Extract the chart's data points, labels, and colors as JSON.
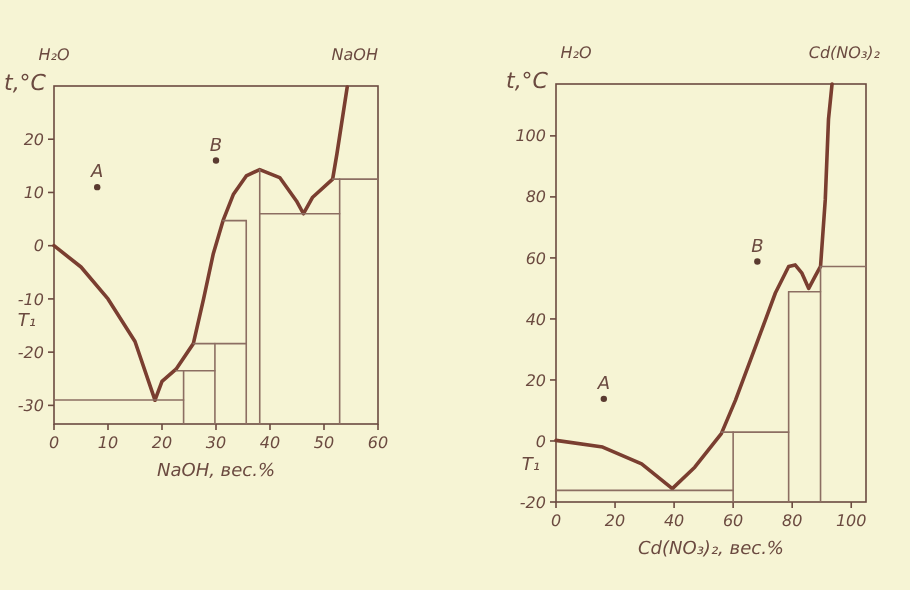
{
  "chart_data": [
    {
      "type": "line",
      "xlabel": "NaOH, вес.%",
      "ylabel": "t,°C",
      "xlim": [
        0,
        60
      ],
      "ylim": [
        -33.5,
        30
      ],
      "xticks": [
        0,
        10,
        20,
        30,
        40,
        50,
        60
      ],
      "yticks": [
        -30,
        -20,
        -10,
        0,
        10,
        20
      ],
      "line_style": "solid",
      "annotations": [
        "H₂O",
        "NaOH",
        "T₁"
      ],
      "series": [
        {
          "color": "#7a3e30",
          "x": [
            0,
            5,
            10,
            15,
            18.7
          ],
          "values": [
            0,
            -4,
            -10,
            -18,
            -29
          ]
        },
        {
          "color": "#7a3e30",
          "x": [
            18.7,
            20,
            22.6,
            25.8,
            27.7,
            29.5,
            31.3,
            33.2,
            35.6,
            38.1,
            41.8,
            44.9,
            46.2,
            47.9,
            51.6,
            52.4,
            54.3
          ],
          "values": [
            -29,
            -25.5,
            -23.2,
            -18.4,
            -10,
            -1.5,
            4.7,
            9.6,
            13.1,
            14.3,
            12.8,
            8.4,
            6,
            9.1,
            12.5,
            17.3,
            29.8
          ]
        },
        {
          "color": "#8c6e62",
          "x": [
            0,
            24
          ],
          "values": [
            -29,
            -29
          ]
        },
        {
          "color": "#8c6e62",
          "x": [
            24,
            24
          ],
          "values": [
            -33.5,
            -23.5
          ]
        },
        {
          "color": "#8c6e62",
          "x": [
            22.6,
            29.8
          ],
          "values": [
            -23.5,
            -23.5
          ]
        },
        {
          "color": "#8c6e62",
          "x": [
            29.8,
            29.8
          ],
          "values": [
            -33.5,
            -18.4
          ]
        },
        {
          "color": "#8c6e62",
          "x": [
            25.8,
            35.6
          ],
          "values": [
            -18.4,
            -18.4
          ]
        },
        {
          "color": "#8c6e62",
          "x": [
            35.6,
            35.6
          ],
          "values": [
            -33.5,
            4.7
          ]
        },
        {
          "color": "#8c6e62",
          "x": [
            31.3,
            35.6
          ],
          "values": [
            4.7,
            4.7
          ]
        },
        {
          "color": "#8c6e62",
          "x": [
            38.1,
            38.1
          ],
          "values": [
            -33.5,
            14.3
          ]
        },
        {
          "color": "#8c6e62",
          "x": [
            38.1,
            52.9
          ],
          "values": [
            6,
            6
          ]
        },
        {
          "color": "#8c6e62",
          "x": [
            52.9,
            52.9
          ],
          "values": [
            -33.5,
            12.5
          ]
        },
        {
          "color": "#8c6e62",
          "x": [
            51.6,
            60
          ],
          "values": [
            12.5,
            12.5
          ]
        },
        {
          "type": "scatter",
          "name": "A",
          "marker": "circle",
          "color": "#5a3a30",
          "x": [
            8
          ],
          "values": [
            11
          ]
        },
        {
          "type": "scatter",
          "name": "B",
          "marker": "circle",
          "color": "#5a3a30",
          "x": [
            30
          ],
          "values": [
            16
          ]
        }
      ]
    },
    {
      "type": "line",
      "xlabel": "Cd(NO₃)₂, вес.%",
      "ylabel": "t,°C",
      "xlim": [
        0,
        105
      ],
      "ylim": [
        -20,
        117
      ],
      "xticks": [
        0,
        20,
        40,
        60,
        80,
        100
      ],
      "yticks": [
        -20,
        0,
        20,
        40,
        60,
        80,
        100
      ],
      "line_style": "solid",
      "annotations": [
        "H₂O",
        "Cd(NO₃)₂",
        "T₁"
      ],
      "series": [
        {
          "color": "#7a3e30",
          "x": [
            0,
            15.8,
            29,
            39.4
          ],
          "values": [
            0.2,
            -2,
            -7.5,
            -15.6
          ]
        },
        {
          "color": "#7a3e30",
          "x": [
            39.4,
            47,
            56,
            60.8,
            67.6,
            74.3,
            78.8,
            81,
            83.3,
            85.6,
            87.8,
            89.6,
            91.2,
            92.3,
            93.5
          ],
          "values": [
            -15.6,
            -8.6,
            2.4,
            13.4,
            31,
            48.5,
            57.2,
            57.7,
            55,
            50,
            54,
            57.2,
            79,
            105.5,
            117
          ]
        },
        {
          "color": "#8c6e62",
          "x": [
            0,
            60
          ],
          "values": [
            -16.2,
            -16.2
          ]
        },
        {
          "color": "#8c6e62",
          "x": [
            60,
            60
          ],
          "values": [
            -20,
            2.9
          ]
        },
        {
          "color": "#8c6e62",
          "x": [
            56,
            78.8
          ],
          "values": [
            2.9,
            2.9
          ]
        },
        {
          "color": "#8c6e62",
          "x": [
            78.8,
            78.8
          ],
          "values": [
            -20,
            48.9
          ]
        },
        {
          "color": "#8c6e62",
          "x": [
            78.8,
            89.6
          ],
          "values": [
            48.9,
            48.9
          ]
        },
        {
          "color": "#8c6e62",
          "x": [
            89.6,
            89.6
          ],
          "values": [
            -20,
            57.2
          ]
        },
        {
          "color": "#8c6e62",
          "x": [
            89.6,
            105
          ],
          "values": [
            57.2,
            57.2
          ]
        },
        {
          "type": "scatter",
          "name": "A",
          "marker": "circle",
          "color": "#5a3a30",
          "x": [
            16.2
          ],
          "values": [
            13.8
          ]
        },
        {
          "type": "scatter",
          "name": "B",
          "marker": "circle",
          "color": "#5a3a30",
          "x": [
            68.2
          ],
          "values": [
            58.8
          ]
        }
      ]
    }
  ]
}
